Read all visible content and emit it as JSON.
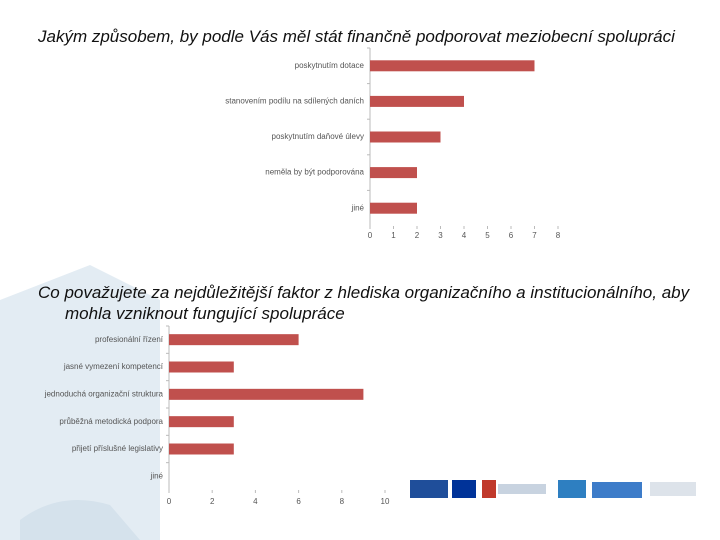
{
  "chart_data": [
    {
      "type": "bar",
      "orientation": "horizontal",
      "title": "Jakým způsobem, by podle Vás měl stát finančně podporovat meziobecní spolupráci",
      "categories": [
        "poskytnutím dotace",
        "stanovením podílu na sdílených daních",
        "poskytnutím daňové úlevy",
        "neměla by být podporována",
        "jiné"
      ],
      "values": [
        7,
        4,
        3,
        2,
        2
      ],
      "color": "#c0504d",
      "xlim": [
        0,
        8
      ],
      "xticks": [
        0,
        1,
        2,
        3,
        4,
        5,
        6,
        7,
        8
      ]
    },
    {
      "type": "bar",
      "orientation": "horizontal",
      "title": "Co považujete za nejdůležitější faktor z hlediska organizačního a institucionálního, aby mohla vzniknout fungující spolupráce",
      "categories": [
        "profesionální řízení",
        "jasné vymezení kompetencí",
        "jednoduchá organizační struktura",
        "průběžná metodická podpora",
        "přijetí příslušné legislativy",
        "jiné"
      ],
      "values": [
        6,
        3,
        9,
        3,
        3,
        0
      ],
      "color": "#c0504d",
      "xlim": [
        0,
        10
      ],
      "xticks": [
        0,
        2,
        4,
        6,
        8,
        10
      ]
    }
  ]
}
